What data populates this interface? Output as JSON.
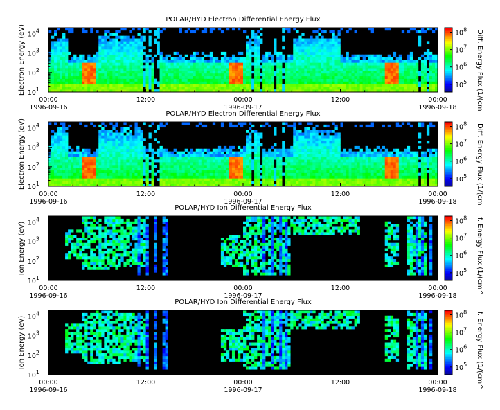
{
  "colors": {
    "background": "#000000",
    "colorbar": [
      "#08089c",
      "#0000ff",
      "#0080ff",
      "#00ffff",
      "#00ff80",
      "#00ff00",
      "#80ff00",
      "#ffff00",
      "#ff8000",
      "#ff0000"
    ]
  },
  "chart_data": [
    {
      "type": "heatmap",
      "title": "POLAR/HYD  Electron Differential Energy Flux",
      "ylabel": "Electron Energy (eV)",
      "colorbar_label": "Diff. Energy Flux (1/(cm",
      "ylim": [
        10,
        20000
      ],
      "yscale": "log",
      "y_ticks": [
        "10",
        "10",
        "10",
        "10"
      ],
      "y_tick_exp": [
        "1",
        "2",
        "3",
        "4"
      ],
      "cbar_ticks": [
        "10",
        "10",
        "10",
        "10"
      ],
      "cbar_tick_exp": [
        "5",
        "6",
        "7",
        "8"
      ],
      "x_ticks": [
        "00:00",
        "12:00",
        "00:00",
        "12:00",
        "00:00"
      ],
      "x_dates": [
        "1996-09-16",
        "1996-09-17",
        "1996-09-18"
      ],
      "x_range": [
        "1996-09-16 00:00",
        "1996-09-18 00:00"
      ],
      "kind": "electron"
    },
    {
      "type": "heatmap",
      "title": "POLAR/HYD  Electron Differential Energy Flux",
      "ylabel": "Electron Energy (eV)",
      "colorbar_label": "Diff. Energy Flux (1/(cm",
      "ylim": [
        10,
        20000
      ],
      "yscale": "log",
      "y_ticks": [
        "10",
        "10",
        "10",
        "10"
      ],
      "y_tick_exp": [
        "1",
        "2",
        "3",
        "4"
      ],
      "cbar_ticks": [
        "10",
        "10",
        "10",
        "10"
      ],
      "cbar_tick_exp": [
        "5",
        "6",
        "7",
        "8"
      ],
      "x_ticks": [
        "00:00",
        "12:00",
        "00:00",
        "12:00",
        "00:00"
      ],
      "x_dates": [
        "1996-09-16",
        "1996-09-17",
        "1996-09-18"
      ],
      "x_range": [
        "1996-09-16 00:00",
        "1996-09-18 00:00"
      ],
      "kind": "electron"
    },
    {
      "type": "heatmap",
      "title": "POLAR/HYD  Ion Differential Energy Flux",
      "ylabel": "Ion Energy (eV)",
      "colorbar_label": "f. Energy Flux (1/(cm^",
      "ylim": [
        10,
        20000
      ],
      "yscale": "log",
      "y_ticks": [
        "10",
        "10",
        "10",
        "10"
      ],
      "y_tick_exp": [
        "1",
        "2",
        "3",
        "4"
      ],
      "cbar_ticks": [
        "10",
        "10",
        "10",
        "10"
      ],
      "cbar_tick_exp": [
        "5",
        "6",
        "7",
        "8"
      ],
      "x_ticks": [
        "00:00",
        "12:00",
        "00:00",
        "12:00",
        "00:00"
      ],
      "x_dates": [
        "1996-09-16",
        "1996-09-17",
        "1996-09-18"
      ],
      "x_range": [
        "1996-09-16 00:00",
        "1996-09-18 00:00"
      ],
      "kind": "ion"
    },
    {
      "type": "heatmap",
      "title": "POLAR/HYD  Ion Differential Energy Flux",
      "ylabel": "Ion Energy (eV)",
      "colorbar_label": "f. Energy Flux (1/(cm^",
      "ylim": [
        10,
        20000
      ],
      "yscale": "log",
      "y_ticks": [
        "10",
        "10",
        "10",
        "10"
      ],
      "y_tick_exp": [
        "1",
        "2",
        "3",
        "4"
      ],
      "cbar_ticks": [
        "10",
        "10",
        "10",
        "10"
      ],
      "cbar_tick_exp": [
        "5",
        "6",
        "7",
        "8"
      ],
      "x_ticks": [
        "00:00",
        "12:00",
        "00:00",
        "12:00",
        "00:00"
      ],
      "x_dates": [
        "1996-09-16",
        "1996-09-17",
        "1996-09-18"
      ],
      "x_range": [
        "1996-09-16 00:00",
        "1996-09-18 00:00"
      ],
      "kind": "ion"
    }
  ]
}
